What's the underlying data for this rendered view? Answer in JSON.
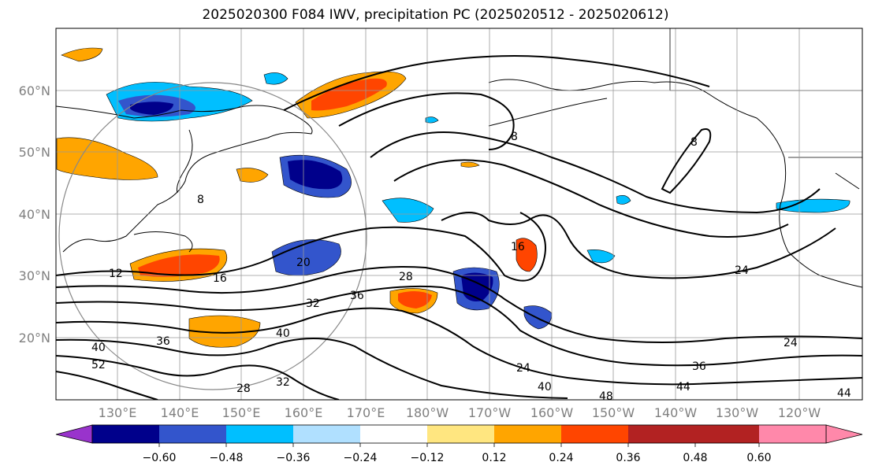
{
  "title": "2025020300 F084 IWV, precipitation PC (2025020512 - 2025020612)",
  "lat_labels": [
    "60°N",
    "50°N",
    "40°N",
    "30°N",
    "20°N"
  ],
  "lon_labels": [
    "130°E",
    "140°E",
    "150°E",
    "160°E",
    "170°E",
    "180°W",
    "170°W",
    "160°W",
    "150°W",
    "140°W",
    "130°W",
    "120°W"
  ],
  "contour_labels": [
    "8",
    "8",
    "8",
    "12",
    "16",
    "16",
    "20",
    "24",
    "24",
    "24",
    "28",
    "28",
    "32",
    "32",
    "36",
    "36",
    "36",
    "40",
    "40",
    "40",
    "44",
    "44",
    "48",
    "52"
  ],
  "colorbar": {
    "colors": [
      "#9933cc",
      "#00008b",
      "#3355cc",
      "#00bfff",
      "#b0e0ff",
      "#ffffff",
      "#ffe680",
      "#ffa500",
      "#ff4500",
      "#b22222",
      "#ff88aa"
    ],
    "ticks": [
      "−0.60",
      "−0.48",
      "−0.36",
      "−0.24",
      "−0.12",
      "0.12",
      "0.24",
      "0.36",
      "0.48",
      "0.60"
    ]
  }
}
